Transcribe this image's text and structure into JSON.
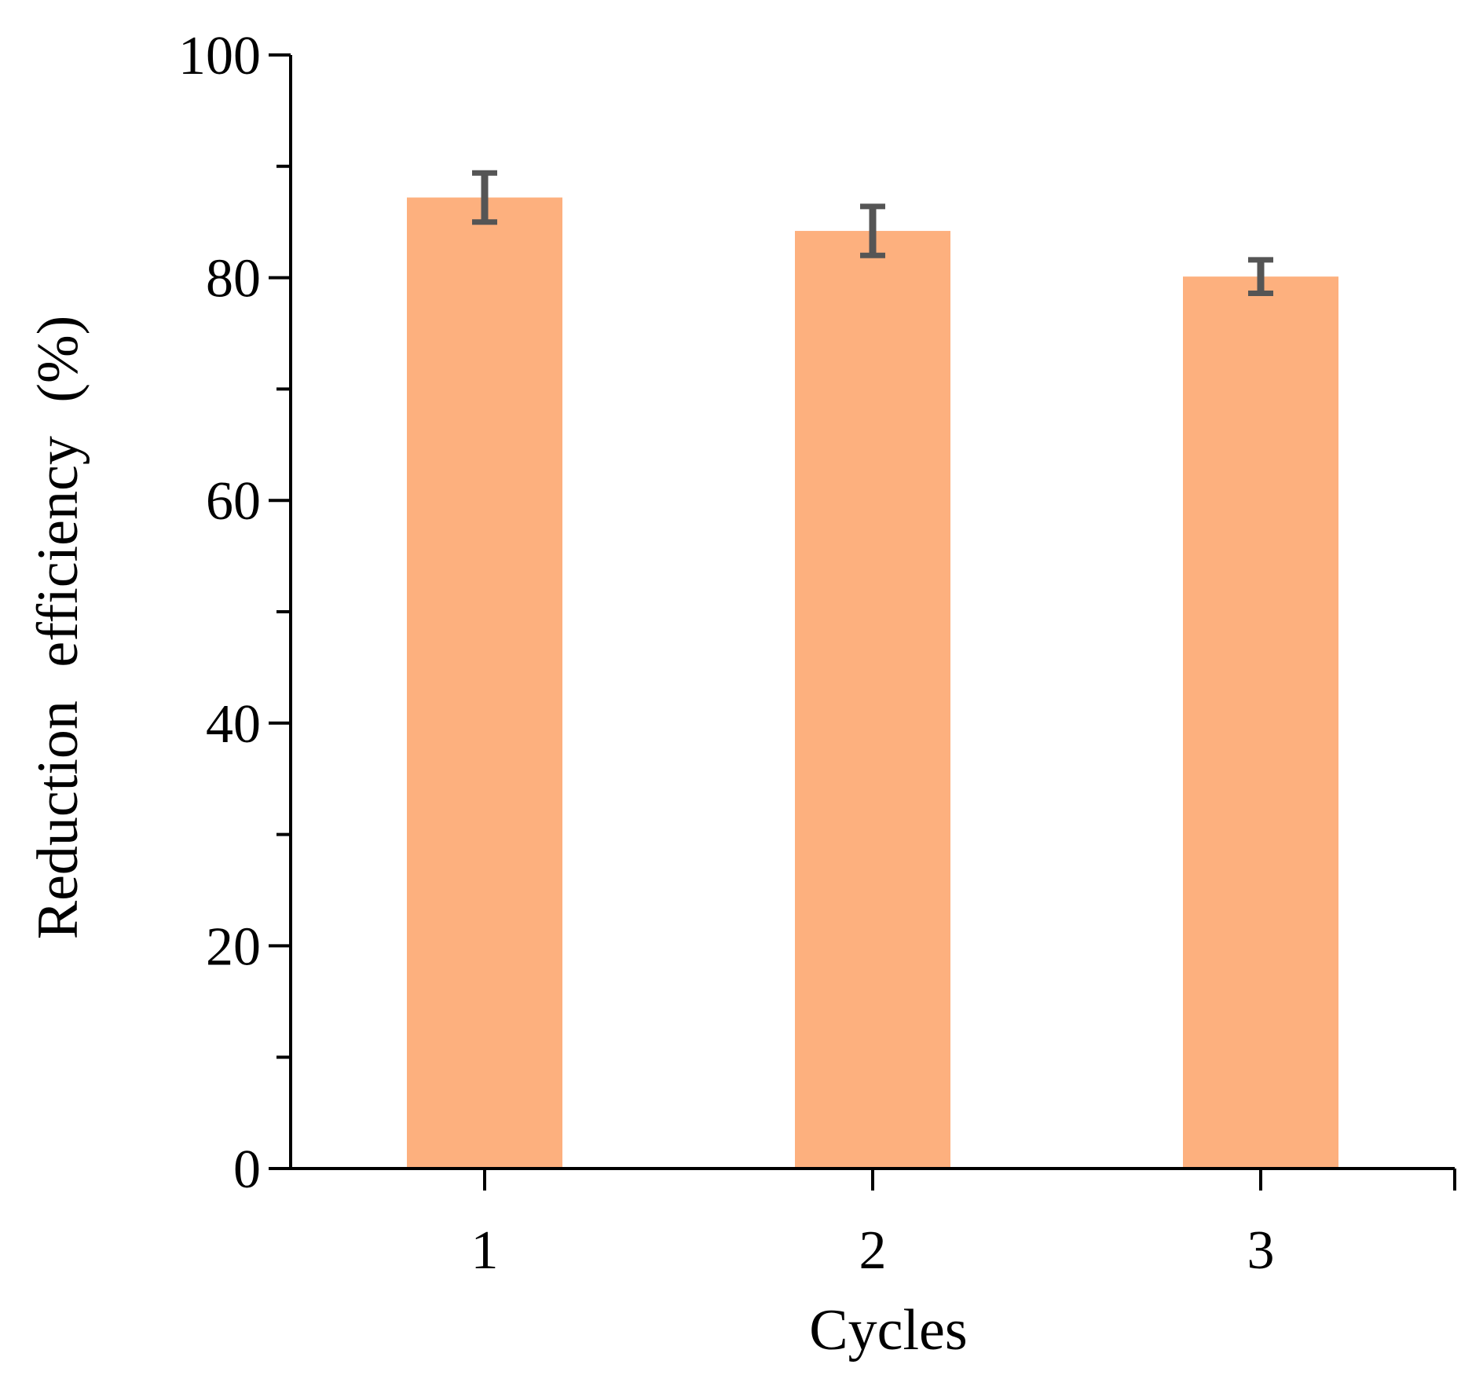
{
  "chart_data": {
    "type": "bar",
    "categories": [
      "1",
      "2",
      "3"
    ],
    "values": [
      87.2,
      84.2,
      80.1
    ],
    "errors": [
      2.2,
      2.2,
      1.5
    ],
    "xlabel": "Cycles",
    "ylabel": "Reduction efficiency (%)",
    "ylim": [
      0,
      100
    ],
    "yticks": [
      0,
      20,
      40,
      60,
      80,
      100
    ],
    "yminor_ticks": [
      10,
      30,
      50,
      70,
      90
    ],
    "grid": false,
    "bar_color": "#FDB07E",
    "error_color": "#555555",
    "axis_color": "#000000"
  }
}
